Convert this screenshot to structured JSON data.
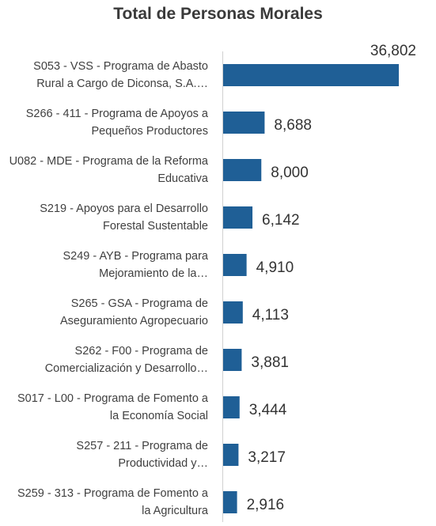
{
  "chart_data": {
    "type": "bar",
    "orientation": "horizontal",
    "title": "Total de Personas Morales",
    "categories": [
      "S053 - VSS - Programa de Abasto Rural a Cargo de Diconsa, S.A.…",
      "S266 - 411 - Programa de Apoyos a Pequeños Productores",
      "U082 - MDE - Programa de la Reforma Educativa",
      "S219 - Apoyos para el Desarrollo Forestal Sustentable",
      "S249 - AYB - Programa para Mejoramiento de la…",
      "S265 - GSA - Programa de Aseguramiento Agropecuario",
      "S262 - F00 - Programa de Comercialización y Desarrollo…",
      "S017 - L00 - Programa de Fomento a la Economía Social",
      "S257 - 211 - Programa de Productividad y…",
      "S259 - 313 - Programa de Fomento a la Agricultura"
    ],
    "values": [
      36802,
      8688,
      8000,
      6142,
      4910,
      4113,
      3881,
      3444,
      3217,
      2916
    ],
    "value_labels": [
      "36,802",
      "8,688",
      "8,000",
      "6,142",
      "4,910",
      "4,113",
      "3,881",
      "3,444",
      "3,217",
      "2,916"
    ],
    "color": "#1f5f96"
  }
}
